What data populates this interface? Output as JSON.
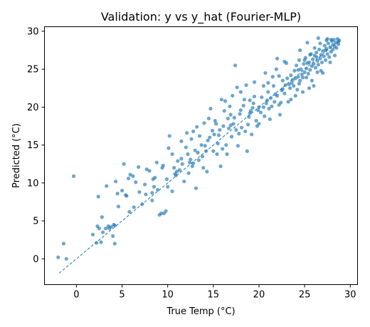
{
  "chart_data": {
    "type": "scatter",
    "title": "Validation: y vs y_hat (Fourier-MLP)",
    "xlabel": "True Temp (°C)",
    "ylabel": "Predicted (°C)",
    "xlim": [
      -3.5,
      30.8
    ],
    "ylim": [
      -3.4,
      30.6
    ],
    "xticks": [
      0,
      5,
      10,
      15,
      20,
      25,
      30
    ],
    "yticks": [
      0,
      5,
      10,
      15,
      20,
      25,
      30
    ],
    "grid": false,
    "legend": "none",
    "point_color": "#1f77b4",
    "reference_line": {
      "style": "dashed",
      "color": "#1f77b4",
      "x": [
        -1.9,
        28.8
      ],
      "y": [
        -1.9,
        28.8
      ]
    },
    "points": [
      [
        -2.0,
        0.2
      ],
      [
        -1.4,
        2.0
      ],
      [
        -1.1,
        0.0
      ],
      [
        -0.3,
        10.9
      ],
      [
        1.8,
        3.2
      ],
      [
        2.2,
        2.1
      ],
      [
        2.3,
        4.3
      ],
      [
        2.4,
        8.2
      ],
      [
        2.5,
        4.0
      ],
      [
        2.7,
        2.2
      ],
      [
        2.8,
        5.5
      ],
      [
        2.9,
        3.5
      ],
      [
        3.2,
        4.0
      ],
      [
        3.3,
        9.6
      ],
      [
        3.6,
        4.0
      ],
      [
        3.8,
        4.2
      ],
      [
        4.0,
        3.0
      ],
      [
        4.1,
        4.5
      ],
      [
        4.2,
        4.4
      ],
      [
        4.2,
        2.0
      ],
      [
        4.3,
        10.2
      ],
      [
        4.5,
        8.6
      ],
      [
        5.0,
        9.0
      ],
      [
        5.2,
        12.5
      ],
      [
        5.4,
        8.4
      ],
      [
        5.5,
        8.3
      ],
      [
        5.8,
        6.2
      ],
      [
        5.9,
        11.1
      ],
      [
        5.7,
        10.6
      ],
      [
        6.2,
        10.9
      ],
      [
        6.5,
        10.1
      ],
      [
        6.8,
        12.1
      ],
      [
        7.2,
        7.2
      ],
      [
        7.6,
        8.5
      ],
      [
        7.7,
        11.8
      ],
      [
        8.0,
        11.6
      ],
      [
        8.3,
        8.7
      ],
      [
        8.3,
        7.7
      ],
      [
        8.4,
        10.5
      ],
      [
        8.6,
        10.7
      ],
      [
        8.8,
        12.7
      ],
      [
        8.9,
        9.1
      ],
      [
        9.1,
        5.8
      ],
      [
        9.3,
        6.0
      ],
      [
        9.4,
        12.0
      ],
      [
        9.6,
        6.0
      ],
      [
        9.8,
        6.3
      ],
      [
        9.9,
        10.5
      ],
      [
        10.0,
        9.5
      ],
      [
        10.1,
        14.6
      ],
      [
        10.2,
        16.2
      ],
      [
        10.5,
        13.8
      ],
      [
        10.7,
        12.0
      ],
      [
        10.9,
        11.0
      ],
      [
        11.1,
        12.9
      ],
      [
        11.3,
        11.7
      ],
      [
        11.5,
        13.2
      ],
      [
        11.5,
        15.5
      ],
      [
        11.8,
        10.2
      ],
      [
        12.0,
        14.7
      ],
      [
        12.1,
        16.6
      ],
      [
        12.2,
        13.8
      ],
      [
        12.4,
        12.7
      ],
      [
        12.6,
        15.8
      ],
      [
        12.8,
        16.8
      ],
      [
        12.8,
        12.6
      ],
      [
        13.0,
        14.3
      ],
      [
        13.1,
        9.3
      ],
      [
        13.4,
        13.0
      ],
      [
        13.5,
        16.2
      ],
      [
        13.7,
        15.0
      ],
      [
        13.9,
        12.0
      ],
      [
        14.0,
        17.9
      ],
      [
        14.2,
        14.2
      ],
      [
        14.3,
        11.5
      ],
      [
        14.4,
        15.6
      ],
      [
        14.6,
        16.0
      ],
      [
        14.7,
        19.8
      ],
      [
        14.9,
        16.9
      ],
      [
        15.0,
        14.2
      ],
      [
        15.2,
        18.2
      ],
      [
        15.3,
        17.8
      ],
      [
        15.4,
        13.8
      ],
      [
        15.6,
        16.3
      ],
      [
        15.7,
        17.0
      ],
      [
        15.8,
        12.2
      ],
      [
        16.0,
        14.5
      ],
      [
        16.1,
        17.5
      ],
      [
        16.2,
        19.5
      ],
      [
        16.4,
        15.0
      ],
      [
        16.5,
        13.8
      ],
      [
        16.6,
        18.5
      ],
      [
        16.7,
        17.2
      ],
      [
        16.8,
        20.1
      ],
      [
        16.9,
        19.0
      ],
      [
        17.0,
        16.1
      ],
      [
        17.2,
        17.8
      ],
      [
        17.3,
        18.6
      ],
      [
        17.4,
        25.5
      ],
      [
        17.6,
        22.6
      ],
      [
        17.7,
        14.9
      ],
      [
        17.8,
        16.5
      ],
      [
        18.0,
        19.6
      ],
      [
        18.1,
        17.3
      ],
      [
        18.3,
        20.2
      ],
      [
        18.4,
        21.0
      ],
      [
        18.5,
        16.8
      ],
      [
        18.7,
        14.2
      ],
      [
        18.8,
        17.7
      ],
      [
        19.0,
        19.2
      ],
      [
        19.1,
        19.5
      ],
      [
        19.2,
        16.4
      ],
      [
        19.4,
        20.5
      ],
      [
        19.5,
        21.4
      ],
      [
        19.7,
        18.2
      ],
      [
        19.8,
        17.5
      ],
      [
        20.0,
        20.0
      ],
      [
        20.2,
        19.3
      ],
      [
        20.3,
        21.3
      ],
      [
        20.5,
        20.0
      ],
      [
        20.6,
        18.8
      ],
      [
        20.8,
        20.5
      ],
      [
        21.0,
        22.0
      ],
      [
        21.1,
        19.8
      ],
      [
        21.3,
        21.2
      ],
      [
        21.4,
        20.1
      ],
      [
        21.6,
        22.8
      ],
      [
        21.7,
        20.7
      ],
      [
        21.9,
        25.0
      ],
      [
        22.0,
        21.5
      ],
      [
        22.2,
        24.1
      ],
      [
        22.3,
        19.0
      ],
      [
        22.5,
        22.2
      ],
      [
        22.6,
        23.5
      ],
      [
        22.8,
        21.8
      ],
      [
        22.9,
        22.9
      ],
      [
        23.1,
        23.8
      ],
      [
        23.2,
        20.7
      ],
      [
        23.4,
        22.5
      ],
      [
        23.5,
        24.2
      ],
      [
        23.6,
        23.2
      ],
      [
        23.8,
        22.8
      ],
      [
        23.9,
        24.8
      ],
      [
        24.0,
        23.8
      ],
      [
        24.1,
        25.5
      ],
      [
        24.2,
        22.3
      ],
      [
        24.3,
        24.0
      ],
      [
        24.4,
        26.2
      ],
      [
        24.5,
        23.5
      ],
      [
        24.6,
        25.0
      ],
      [
        24.7,
        24.3
      ],
      [
        24.8,
        23.9
      ],
      [
        24.9,
        25.7
      ],
      [
        25.0,
        24.6
      ],
      [
        25.1,
        26.5
      ],
      [
        25.2,
        25.1
      ],
      [
        25.3,
        28.5
      ],
      [
        25.4,
        24.4
      ],
      [
        25.5,
        25.9
      ],
      [
        25.6,
        24.9
      ],
      [
        25.7,
        27.0
      ],
      [
        25.8,
        25.4
      ],
      [
        25.9,
        26.3
      ],
      [
        26.0,
        25.7
      ],
      [
        26.1,
        26.8
      ],
      [
        26.2,
        25.2
      ],
      [
        26.3,
        27.2
      ],
      [
        26.4,
        26.1
      ],
      [
        26.5,
        25.6
      ],
      [
        26.6,
        27.6
      ],
      [
        26.7,
        26.4
      ],
      [
        26.8,
        26.9
      ],
      [
        26.9,
        25.9
      ],
      [
        27.0,
        27.4
      ],
      [
        27.1,
        26.7
      ],
      [
        27.2,
        28.1
      ],
      [
        27.3,
        26.2
      ],
      [
        27.4,
        27.7
      ],
      [
        27.5,
        27.0
      ],
      [
        27.6,
        28.4
      ],
      [
        27.7,
        26.6
      ],
      [
        27.8,
        27.9
      ],
      [
        27.9,
        27.3
      ],
      [
        28.0,
        28.7
      ],
      [
        28.1,
        27.6
      ],
      [
        28.2,
        28.9
      ],
      [
        28.3,
        28.0
      ],
      [
        28.4,
        28.5
      ],
      [
        28.5,
        27.8
      ],
      [
        28.6,
        29.0
      ],
      [
        28.7,
        28.3
      ],
      [
        28.8,
        28.8
      ],
      [
        26.0,
        22.8
      ],
      [
        25.5,
        22.5
      ],
      [
        27.0,
        24.5
      ],
      [
        24.0,
        21.5
      ],
      [
        23.0,
        25.8
      ],
      [
        22.0,
        26.4
      ],
      [
        26.5,
        29.1
      ],
      [
        27.5,
        29.0
      ],
      [
        21.0,
        23.2
      ],
      [
        20.5,
        22.8
      ],
      [
        19.5,
        23.3
      ],
      [
        18.0,
        22.0
      ],
      [
        20.0,
        17.8
      ],
      [
        21.5,
        24.0
      ],
      [
        22.8,
        26.0
      ],
      [
        24.5,
        27.5
      ],
      [
        23.5,
        21.0
      ],
      [
        25.8,
        23.5
      ],
      [
        26.8,
        24.8
      ],
      [
        27.8,
        25.9
      ],
      [
        28.3,
        26.8
      ],
      [
        24.8,
        22.0
      ],
      [
        22.2,
        20.3
      ],
      [
        19.0,
        20.9
      ],
      [
        17.5,
        17.0
      ],
      [
        16.3,
        20.8
      ],
      [
        15.5,
        15.2
      ],
      [
        14.5,
        18.5
      ],
      [
        13.8,
        13.5
      ],
      [
        12.5,
        13.1
      ],
      [
        11.0,
        11.5
      ],
      [
        10.5,
        8.9
      ],
      [
        9.5,
        12.3
      ],
      [
        8.5,
        9.5
      ],
      [
        7.5,
        9.8
      ],
      [
        6.9,
        8.8
      ],
      [
        3.5,
        4.3
      ],
      [
        4.6,
        6.9
      ],
      [
        6.3,
        6.8
      ],
      [
        12.3,
        11.3
      ],
      [
        13.2,
        17.4
      ],
      [
        15.9,
        21.0
      ],
      [
        17.1,
        21.5
      ],
      [
        18.6,
        22.9
      ],
      [
        19.3,
        19.9
      ],
      [
        20.7,
        24.5
      ],
      [
        21.2,
        18.4
      ],
      [
        22.4,
        20.6
      ],
      [
        23.3,
        23.0
      ],
      [
        24.3,
        24.9
      ],
      [
        25.3,
        25.8
      ],
      [
        26.3,
        26.6
      ],
      [
        27.3,
        27.5
      ],
      [
        28.1,
        28.2
      ],
      [
        25.0,
        26.2
      ],
      [
        25.6,
        26.9
      ],
      [
        26.1,
        27.8
      ],
      [
        26.7,
        28.4
      ],
      [
        27.4,
        28.8
      ],
      [
        28.7,
        28.6
      ],
      [
        27.9,
        28.9
      ],
      [
        26.4,
        24.6
      ],
      [
        25.2,
        23.9
      ],
      [
        24.4,
        23.1
      ],
      [
        23.7,
        23.6
      ],
      [
        22.6,
        22.4
      ],
      [
        21.8,
        21.7
      ],
      [
        20.9,
        20.9
      ],
      [
        19.9,
        19.6
      ],
      [
        18.9,
        18.7
      ],
      [
        17.9,
        19.1
      ],
      [
        16.9,
        17.6
      ],
      [
        15.1,
        16.4
      ],
      [
        14.1,
        14.9
      ],
      [
        13.3,
        14.0
      ],
      [
        12.7,
        12.2
      ],
      [
        11.6,
        12.5
      ],
      [
        10.8,
        11.2
      ]
    ]
  }
}
